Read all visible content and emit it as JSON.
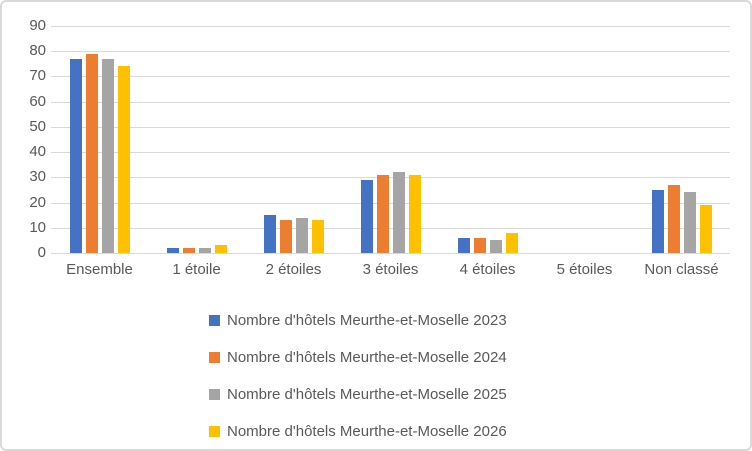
{
  "chart_data": {
    "type": "bar",
    "title": "",
    "categories": [
      "Ensemble",
      "1 étoile",
      "2 étoiles",
      "3 étoiles",
      "4 étoiles",
      "5 étoiles",
      "Non classé"
    ],
    "series": [
      {
        "name": "Nombre d'hôtels Meurthe-et-Moselle 2023",
        "color": "#4472C4",
        "values": [
          77,
          2,
          15,
          29,
          6,
          0,
          25
        ]
      },
      {
        "name": "Nombre d'hôtels Meurthe-et-Moselle 2024",
        "color": "#ED7D31",
        "values": [
          79,
          2,
          13,
          31,
          6,
          0,
          27
        ]
      },
      {
        "name": "Nombre d'hôtels Meurthe-et-Moselle 2025",
        "color": "#A5A5A5",
        "values": [
          77,
          2,
          14,
          32,
          5,
          0,
          24
        ]
      },
      {
        "name": "Nombre d'hôtels Meurthe-et-Moselle 2026",
        "color": "#FFC000",
        "values": [
          74,
          3,
          13,
          31,
          8,
          0,
          19
        ]
      }
    ],
    "xlabel": "",
    "ylabel": "",
    "ylim": [
      0,
      90
    ],
    "ytick_step": 10,
    "grid": true,
    "legend_position": "bottom-left",
    "style": {
      "gridline_color": "#D9D9D9",
      "axis_text_color": "#595959",
      "legend_text_color": "#595959",
      "background_color": "#FFFFFF",
      "border_color": "#D9D9D9"
    }
  }
}
